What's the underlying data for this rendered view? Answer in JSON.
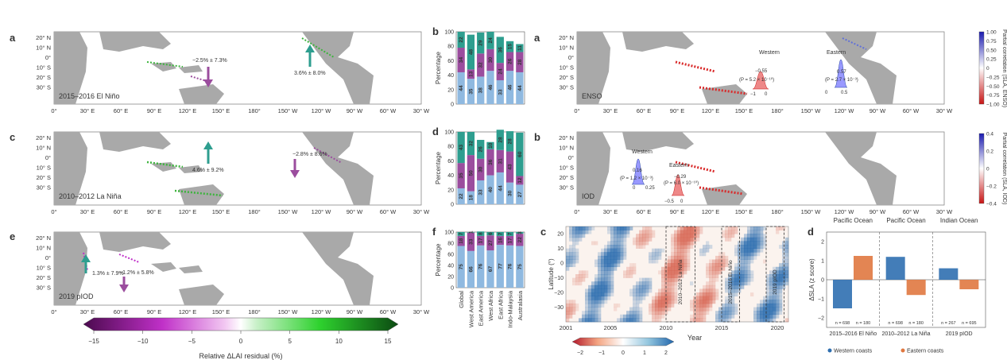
{
  "panels": {
    "map_a": {
      "letter": "a",
      "label": "2015–2016 El Niño",
      "ann": [
        {
          "text": "−2.5% ± 7.3%",
          "dir": "down"
        },
        {
          "text": "3.6% ± 8.0%",
          "dir": "up"
        }
      ]
    },
    "map_c": {
      "letter": "c",
      "label": "2010–2012 La Niña",
      "ann": [
        {
          "text": "4.6% ± 9.2%",
          "dir": "up"
        },
        {
          "text": "−2.8% ± 8.6%",
          "dir": "down"
        }
      ]
    },
    "map_e": {
      "letter": "e",
      "label": "2019 pIOD",
      "ann": [
        {
          "text": "1.3% ± 7.9%",
          "dir": "up"
        },
        {
          "text": "−1.2% ± 5.8%",
          "dir": "down"
        }
      ]
    },
    "map_ra": {
      "letter": "a",
      "label": "ENSO",
      "western": {
        "title": "Western",
        "value": "−0.55",
        "p": "(P = 5.2 × 10⁻¹⁰)",
        "t0": "−1",
        "t1": "0"
      },
      "eastern": {
        "title": "Eastern",
        "value": "0.57",
        "p": "(P = 2.7 × 10⁻³)",
        "t0": "0",
        "t1": "0.5"
      }
    },
    "map_rb": {
      "letter": "b",
      "label": "IOD",
      "western": {
        "title": "Western",
        "value": "0.16",
        "p": "(P = 1.2 × 10⁻³)",
        "t0": "0",
        "t1": "0.25"
      },
      "eastern": {
        "title": "Eastern",
        "value": "−0.29",
        "p": "(P = 6.0 × 10⁻¹⁰)",
        "t0": "−0.5",
        "t1": "0"
      }
    }
  },
  "lat_labels": [
    "20° N",
    "10° N",
    "0°",
    "10° S",
    "20° S",
    "30° S"
  ],
  "lon_labels": [
    "0°",
    "30° E",
    "60° E",
    "90° E",
    "120° E",
    "150° E",
    "180°",
    "150° W",
    "120° W",
    "90° W",
    "60° W",
    "30° W"
  ],
  "colorbar_lai": {
    "label": "Relative ΔLAI residual (%)",
    "ticks": [
      "−15",
      "−10",
      "−5",
      "0",
      "5",
      "10",
      "15"
    ]
  },
  "colorbar_enso": {
    "label": "Partial correlation (SLA, ENSO)",
    "ticks": [
      "1.00",
      "0.75",
      "0.50",
      "0.25",
      "0",
      "−0.25",
      "−0.50",
      "−0.75",
      "−1.00"
    ]
  },
  "colorbar_iod": {
    "label": "Partial correlation (SLA, IOD)",
    "ticks": [
      "0.4",
      "0.2",
      "0",
      "−0.2",
      "−0.4"
    ]
  },
  "colorbar_hov": {
    "ticks": [
      "−2",
      "−1",
      "0",
      "1",
      "2"
    ]
  },
  "colors": {
    "land": "#a9a9a9",
    "purple": "#9b4d9e",
    "teal": "#2e9e8f",
    "green": "#3cb43c",
    "blue": "#8fb9e0",
    "red": "#d92b2b",
    "darkblue": "#2140a0",
    "orange": "#e07840",
    "navy": "#2f6fb0"
  },
  "chart_data": [
    {
      "id": "b",
      "letter": "b",
      "type": "bar",
      "stacked": true,
      "ylabel": "Percentage",
      "ylim": [
        0,
        100
      ],
      "yticks": [
        "0",
        "20",
        "40",
        "60",
        "80",
        "100"
      ],
      "categories": [
        "Global",
        "West America",
        "East America",
        "West Africa",
        "East Africa",
        "Indo-Malaysia",
        "Australasia"
      ],
      "series": [
        {
          "color": "#8fb9e0",
          "values": [
            44,
            35,
            38,
            46,
            33,
            46,
            44
          ]
        },
        {
          "color": "#9b4d9e",
          "values": [
            34,
            13,
            32,
            30,
            24,
            26,
            28
          ]
        },
        {
          "color": "#2e9e8f",
          "values": [
            22,
            48,
            29,
            24,
            36,
            15,
            11
          ]
        }
      ]
    },
    {
      "id": "d",
      "letter": "d",
      "type": "bar",
      "stacked": true,
      "ylabel": "Percentage",
      "ylim": [
        0,
        100
      ],
      "yticks": [
        "0",
        "20",
        "40",
        "60",
        "80",
        "100"
      ],
      "categories": [
        "Global",
        "West America",
        "East America",
        "West Africa",
        "East Africa",
        "Indo-Malaysia",
        "Australasia"
      ],
      "series": [
        {
          "color": "#8fb9e0",
          "values": [
            22,
            18,
            33,
            40,
            44,
            30,
            27
          ]
        },
        {
          "color": "#9b4d9e",
          "values": [
            35,
            50,
            30,
            36,
            31,
            43,
            12
          ]
        },
        {
          "color": "#2e9e8f",
          "values": [
            43,
            32,
            26,
            10,
            28,
            28,
            60
          ]
        }
      ]
    },
    {
      "id": "f",
      "letter": "f",
      "type": "bar",
      "stacked": true,
      "ylabel": "Percentage",
      "ylim": [
        0,
        100
      ],
      "yticks": [
        "0",
        "20",
        "40",
        "60",
        "80",
        "100"
      ],
      "categories": [
        "Global",
        "West America",
        "East America",
        "West Africa",
        "East Africa",
        "Indo-Malaysia",
        "Australasia"
      ],
      "series": [
        {
          "color": "#8fb9e0",
          "values": [
            75,
            66,
            76,
            67,
            77,
            76,
            75
          ]
        },
        {
          "color": "#9b4d9e",
          "values": [
            18,
            33,
            17,
            27,
            16,
            17,
            22
          ]
        },
        {
          "color": "#2e9e8f",
          "values": [
            7,
            1,
            8,
            6,
            7,
            7,
            3
          ]
        }
      ]
    },
    {
      "id": "c",
      "letter": "c",
      "type": "heatmap",
      "xlabel": "Year",
      "ylabel": "Latitude (°)",
      "xlim": [
        2001,
        2021
      ],
      "ylim": [
        -40,
        25
      ],
      "xticks": [
        "2001",
        "2005",
        "2010",
        "2015",
        "2020"
      ],
      "yticks": [
        "20",
        "10",
        "0",
        "−10",
        "−20",
        "−30"
      ],
      "events": [
        {
          "label": "2010–2012 La Niña"
        },
        {
          "label": "2015–2016 El Niño"
        },
        {
          "label": "2019 pIOD"
        }
      ]
    },
    {
      "id": "d2",
      "letter": "d",
      "type": "bar",
      "ylabel": "ΔSLA (z score)",
      "ylim": [
        -2.5,
        2.5
      ],
      "yticks": [
        "2",
        "1",
        "0",
        "−1",
        "−2"
      ],
      "ocean_labels": [
        "Pacific Ocean",
        "Pacific Ocean",
        "Indian Ocean"
      ],
      "categories": [
        "2015–2016 El Niño",
        "2010–2012 La Niña",
        "2019 pIOD"
      ],
      "series": [
        {
          "name": "Western coasts",
          "color": "#2f6fb0",
          "values": [
            -1.5,
            1.2,
            0.6
          ]
        },
        {
          "name": "Eastern coasts",
          "color": "#e07840",
          "values": [
            1.25,
            -0.8,
            -0.5
          ]
        }
      ],
      "n_labels": [
        [
          "n = 698",
          "n = 180"
        ],
        [
          "n = 698",
          "n = 180"
        ],
        [
          "n = 267",
          "n = 695"
        ]
      ],
      "legend": [
        "Western coasts",
        "Eastern coasts"
      ]
    }
  ]
}
